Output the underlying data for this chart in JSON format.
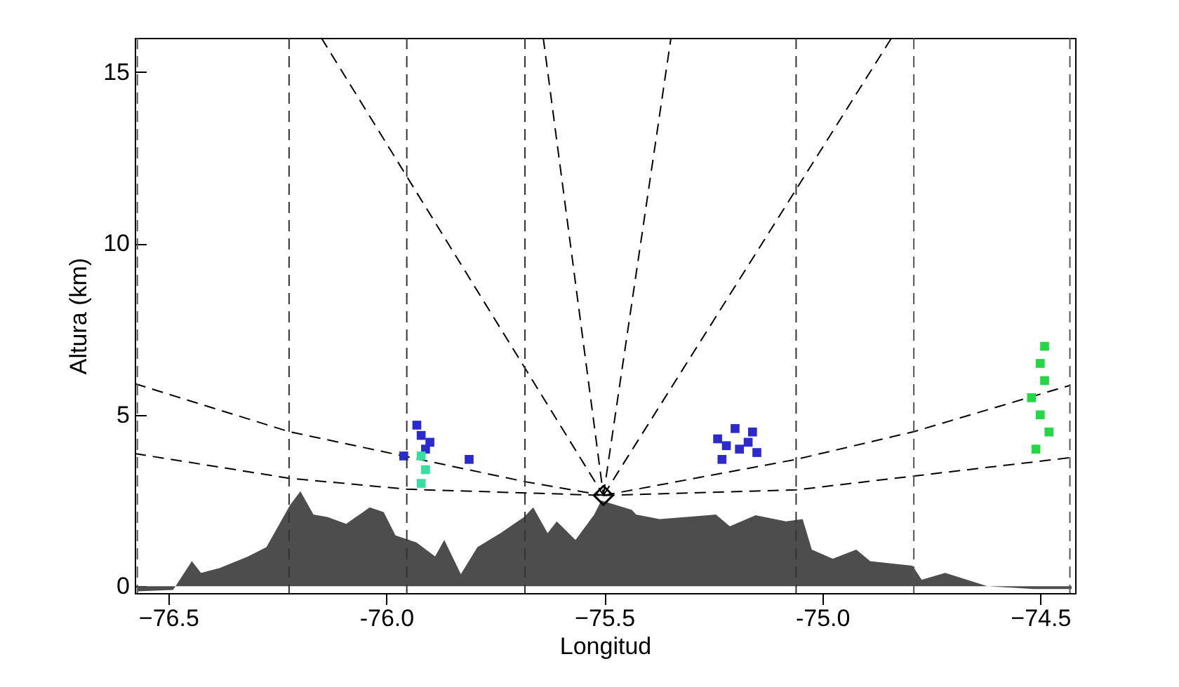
{
  "chart_data": {
    "type": "line",
    "xlabel": "Longitud",
    "ylabel": "Altura (km)",
    "xlim": [
      -76.577,
      -74.42
    ],
    "ylim": [
      -0.2,
      16
    ],
    "xticks": [
      -76.5,
      {
        "value": -76.0,
        "label": "-76.0"
      },
      -75.5,
      {
        "value": -75.0,
        "label": "-75.0"
      },
      -74.5
    ],
    "yticks": [
      0,
      5,
      10,
      15
    ],
    "grid": false,
    "series": [
      {
        "type": "area",
        "color": "#4d4d4d",
        "x": [
          -76.57,
          -76.489,
          -76.446,
          -76.425,
          -76.382,
          -76.317,
          -76.275,
          -76.221,
          -76.197,
          -76.167,
          -76.135,
          -76.092,
          -76.038,
          -76.006,
          -75.979,
          -75.931,
          -75.888,
          -75.867,
          -75.829,
          -75.791,
          -75.738,
          -75.684,
          -75.663,
          -75.63,
          -75.609,
          -75.566,
          -75.523,
          -75.507,
          -75.437,
          -75.427,
          -75.373,
          -75.244,
          -75.212,
          -75.153,
          -75.083,
          -75.045,
          -75.024,
          -74.976,
          -74.922,
          -74.89,
          -74.793,
          -74.772,
          -74.718,
          -74.621,
          -74.514,
          -74.428
        ],
        "values": [
          -0.15,
          -0.11,
          0.73,
          0.39,
          0.53,
          0.87,
          1.14,
          2.36,
          2.77,
          2.09,
          2.02,
          1.82,
          2.3,
          2.16,
          1.48,
          1.28,
          0.87,
          1.35,
          0.35,
          1.14,
          1.55,
          2.02,
          2.3,
          1.55,
          1.89,
          1.35,
          2.09,
          2.5,
          2.23,
          2.09,
          1.96,
          2.09,
          1.75,
          2.07,
          1.89,
          1.96,
          1.07,
          0.8,
          1.07,
          0.73,
          0.6,
          0.19,
          0.39,
          0.0,
          -0.08,
          -0.08
        ]
      },
      {
        "color": "#000000",
        "line_style": "dashed",
        "x": [
          -76.577,
          -76.223,
          -75.953,
          -75.502
        ],
        "values": [
          3.87,
          3.15,
          2.83,
          2.65
        ]
      },
      {
        "color": "#000000",
        "line_style": "dashed",
        "x": [
          -76.577,
          -76.223,
          -75.953,
          -75.682,
          -75.502
        ],
        "values": [
          5.91,
          4.51,
          3.78,
          3.05,
          2.65
        ]
      },
      {
        "color": "#000000",
        "line_style": "dashed",
        "x": [
          -75.502,
          -75.06,
          -74.432
        ],
        "values": [
          2.65,
          2.81,
          3.75
        ]
      },
      {
        "color": "#000000",
        "line_style": "dashed",
        "x": [
          -75.502,
          -75.06,
          -74.79,
          -74.432
        ],
        "values": [
          2.65,
          3.7,
          4.51,
          5.86
        ]
      },
      {
        "color": "#000000",
        "line_style": "dashed",
        "x": [
          -75.502,
          -75.64
        ],
        "values": [
          2.65,
          16
        ]
      },
      {
        "color": "#000000",
        "line_style": "dashed",
        "x": [
          -75.502,
          -76.149
        ],
        "values": [
          2.65,
          16
        ]
      },
      {
        "color": "#000000",
        "line_style": "dashed",
        "x": [
          -75.502,
          -75.347
        ],
        "values": [
          2.65,
          16
        ]
      },
      {
        "color": "#000000",
        "line_style": "dashed",
        "x": [
          -75.502,
          -74.841
        ],
        "values": [
          2.65,
          16
        ]
      },
      {
        "type": "scatter",
        "color": "#2a2ad0",
        "marker": "square",
        "x": [
          -75.93,
          -75.92,
          -75.91,
          -75.9,
          -75.96,
          -75.81,
          -75.24,
          -75.23,
          -75.2,
          -75.19,
          -75.16,
          -75.15,
          -75.17,
          -75.22
        ],
        "values": [
          4.7,
          4.4,
          4.0,
          4.2,
          3.8,
          3.7,
          4.3,
          3.7,
          4.6,
          4.0,
          4.5,
          3.9,
          4.2,
          4.1
        ]
      },
      {
        "type": "scatter",
        "color": "#33e0a0",
        "marker": "square",
        "x": [
          -75.92,
          -75.91,
          -75.92
        ],
        "values": [
          3.0,
          3.4,
          3.8
        ]
      },
      {
        "type": "scatter",
        "color": "#22d844",
        "marker": "square",
        "x": [
          -74.51,
          -74.5,
          -74.49,
          -74.5,
          -74.48,
          -74.52,
          -74.49
        ],
        "values": [
          4.0,
          5.0,
          6.0,
          6.5,
          4.5,
          5.5,
          7.0
        ]
      },
      {
        "type": "scatter",
        "color": "#000000",
        "marker": "diamond",
        "x": [
          -75.502
        ],
        "values": [
          2.65
        ]
      }
    ],
    "ref_lines": [
      {
        "axis": "x",
        "value": -76.571,
        "line_style": "dashed",
        "color": "#555555"
      },
      {
        "axis": "x",
        "value": -76.223,
        "line_style": "dashed",
        "color": "#333333"
      },
      {
        "axis": "x",
        "value": -75.953,
        "line_style": "dashed",
        "color": "#333333"
      },
      {
        "axis": "x",
        "value": -75.682,
        "line_style": "dashed",
        "color": "#333333"
      },
      {
        "axis": "x",
        "value": -75.06,
        "line_style": "dashed",
        "color": "#333333"
      },
      {
        "axis": "x",
        "value": -74.79,
        "line_style": "dashed",
        "color": "#555555"
      },
      {
        "axis": "x",
        "value": -74.432,
        "line_style": "dashed",
        "color": "#555555"
      }
    ]
  }
}
